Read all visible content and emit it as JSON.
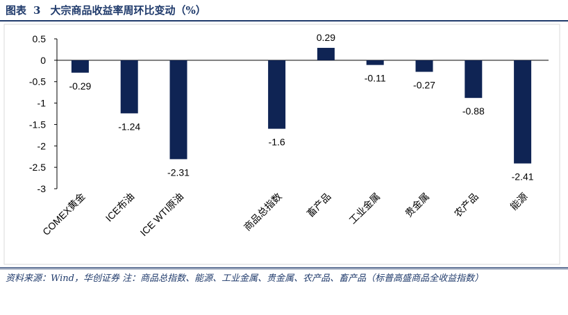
{
  "header": {
    "figure_label": "图表",
    "figure_number": "3",
    "title": "大宗商品收益率周环比变动（%）"
  },
  "chart_data": {
    "type": "bar",
    "title": "大宗商品收益率周环比变动（%）",
    "xlabel": "",
    "ylabel": "",
    "ylim": [
      -3,
      0.5
    ],
    "yticks": [
      "0.5",
      "0",
      "-0.5",
      "-1",
      "-1.5",
      "-2",
      "-2.5",
      "-3"
    ],
    "grid": false,
    "categories": [
      "COMEX黄金",
      "ICE布油",
      "ICE WTI原油",
      "",
      "商品总指数",
      "畜产品",
      "工业金属",
      "贵金属",
      "农产品",
      "能源"
    ],
    "values": [
      -0.29,
      -1.24,
      -2.31,
      null,
      -1.6,
      0.29,
      -0.11,
      -0.27,
      -0.88,
      -2.41
    ],
    "data_labels": [
      "-0.29",
      "-1.24",
      "-2.31",
      "",
      "-1.6",
      "0.29",
      "-0.11",
      "-0.27",
      "-0.88",
      "-2.41"
    ],
    "bar_color": "#0f2454"
  },
  "footer": {
    "source": "资料来源：Wind，华创证券  注：商品总指数、能源、工业金属、贵金属、农产品、畜产品（标普高盛商品全收益指数）"
  }
}
